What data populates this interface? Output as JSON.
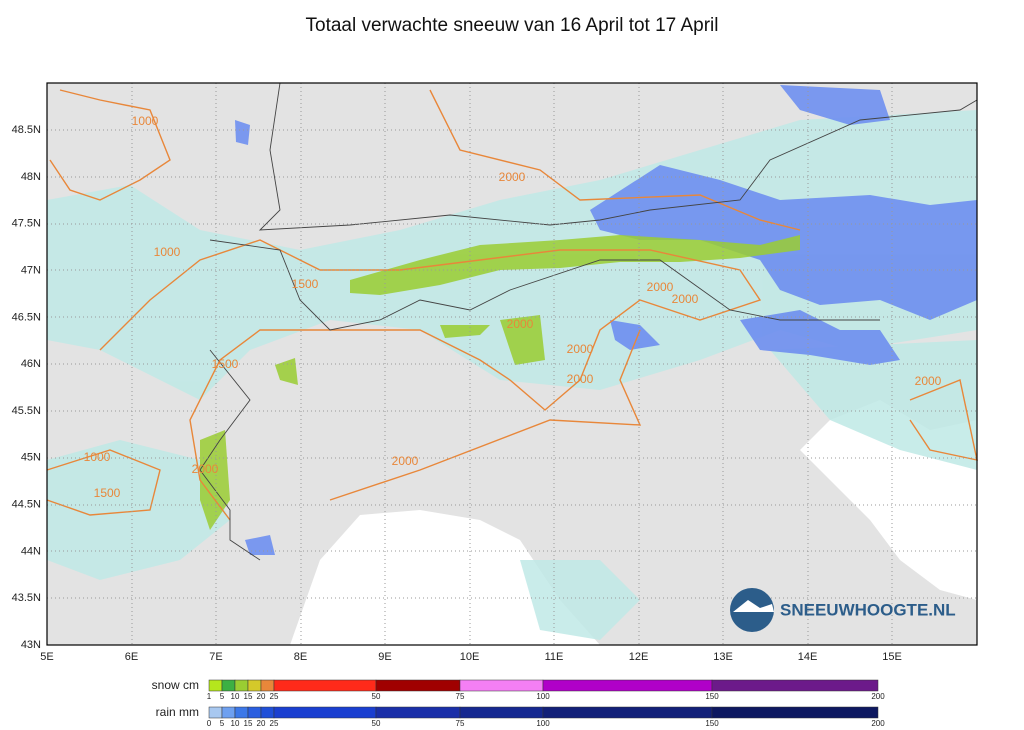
{
  "title": "Totaal verwachte sneeuw van 16 April tot 17 April",
  "map": {
    "lat_labels": [
      "43N",
      "43.5N",
      "44N",
      "44.5N",
      "45N",
      "45.5N",
      "46N",
      "46.5N",
      "47N",
      "47.5N",
      "48N",
      "48.5N"
    ],
    "lon_labels": [
      "5E",
      "6E",
      "7E",
      "8E",
      "9E",
      "10E",
      "11E",
      "12E",
      "13E",
      "14E",
      "15E"
    ],
    "contour_labels": [
      "1000",
      "2000",
      "1000",
      "1500",
      "2000",
      "2000",
      "2000",
      "1500",
      "2000",
      "2000",
      "2000",
      "1000",
      "2000",
      "2000",
      "1500"
    ],
    "logo": "SNEEUWHOOGTE.NL"
  },
  "legend": {
    "snow": {
      "label": "snow cm",
      "ticks": [
        1,
        5,
        10,
        15,
        20,
        25,
        50,
        75,
        100,
        150,
        200
      ]
    },
    "rain": {
      "label": "rain mm",
      "ticks": [
        0,
        5,
        10,
        15,
        20,
        25,
        50,
        75,
        100,
        150,
        200
      ]
    }
  }
}
